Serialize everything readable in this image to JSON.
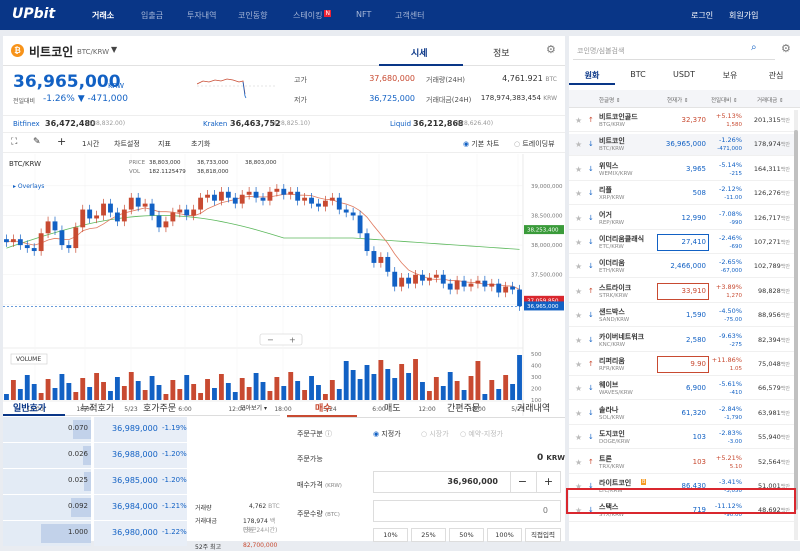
{
  "header": {
    "logo": "UPbit",
    "nav": [
      "거래소",
      "입출금",
      "투자내역",
      "코인동향",
      "스테이킹",
      "NFT",
      "고객센터"
    ],
    "staking_badge": "N",
    "login": "로그인",
    "signup": "회원가입"
  },
  "coin": {
    "icon": "₿",
    "name": "비트코인",
    "pair": "BTC/KRW",
    "tab_price": "시세",
    "tab_info": "정보",
    "price": "36,965,000",
    "unit": "KRW",
    "change_label": "전일대비",
    "change": "-1.26%",
    "change_amt": "▼ -471,000"
  },
  "stats": {
    "high_label": "고가",
    "high": "37,680,000",
    "low_label": "저가",
    "low": "36,725,000",
    "vol_label": "거래량(24H)",
    "vol": "4,761.921",
    "vol_unit": "BTC",
    "amt_label": "거래대금(24H)",
    "amt": "178,974,383,454",
    "amt_unit": "KRW"
  },
  "exchanges": [
    {
      "name": "Bitfinex",
      "value": "36,472,480",
      "usd": "($28,832.00)"
    },
    {
      "name": "Kraken",
      "value": "36,463,752",
      "usd": "($28,825.10)"
    },
    {
      "name": "Liquid",
      "value": "36,212,868",
      "usd": "($28,626.40)"
    }
  ],
  "toolbar": {
    "interval": "1시간",
    "settings": "차트설정",
    "indicator": "지표",
    "reset": "초기화",
    "basic": "기본 차트",
    "tradingview": "트레이딩뷰"
  },
  "chart_data": {
    "type": "candlestick",
    "title": "",
    "symbol": "BTC/KRW",
    "overlays": "Overlays",
    "volume_label": "VOLUME",
    "legend": {
      "price": "PRICE",
      "vol": "VOL",
      "p1": "38,803,000",
      "v1": "182.1125479",
      "p2": "38,733,000",
      "v2": "38,818,000",
      "p3": "38,803,000"
    },
    "y_ticks": [
      "39,000,000",
      "38,500,000",
      "38,000,000",
      "37,500,000",
      "37,000,000"
    ],
    "y_tags": [
      "38,253,400",
      "37,059,850",
      "36,965,000"
    ],
    "vol_ticks": [
      "500",
      "400",
      "300",
      "200",
      "100"
    ],
    "x_labels": [
      "12:00",
      "18:00",
      "5/23",
      "6:00",
      "12:00",
      "18:00",
      "5/24",
      "6:00",
      "12:00",
      "18:00",
      "5/25"
    ],
    "ylim": [
      36500000,
      39200000
    ]
  },
  "orderbook": {
    "tabs": [
      "일반호가",
      "누적호가",
      "호가주문"
    ],
    "view": "모아보기 ▾",
    "rows": [
      {
        "qty": "0.070",
        "price": "36,989,000",
        "pct": "-1.19%"
      },
      {
        "qty": "0.026",
        "price": "36,988,000",
        "pct": "-1.20%"
      },
      {
        "qty": "0.025",
        "price": "36,985,000",
        "pct": "-1.20%"
      },
      {
        "qty": "0.092",
        "price": "36,984,000",
        "pct": "-1.21%"
      },
      {
        "qty": "1.000",
        "price": "36,980,000",
        "pct": "-1.22%"
      }
    ],
    "info": {
      "vol_l": "거래량",
      "vol_v": "4,762",
      "vol_u": "BTC",
      "amt_l": "거래대금",
      "amt_v": "178,974",
      "amt_u": "백만원",
      "amt_n": "(최근24시간)",
      "hi52_l": "52주 최고",
      "hi52_v": "82,700,000",
      "hi52_d": "(2021.11.09)",
      "lo52_l": "52주 최저",
      "lo52_v": "33,900,000"
    }
  },
  "order": {
    "tabs": [
      "매수",
      "매도",
      "간편주문",
      "거래내역"
    ],
    "type_label": "주문구분",
    "opt_limit": "지정가",
    "opt_market": "시장가",
    "opt_reserve": "예약-지정가",
    "avail_label": "주문가능",
    "avail_value": "0",
    "avail_unit": "KRW",
    "price_label": "매수가격",
    "price_unit": "(KRW)",
    "price_value": "36,960,000",
    "qty_label": "주문수량",
    "qty_unit": "(BTC)",
    "qty_value": "0",
    "pcts": [
      "10%",
      "25%",
      "50%",
      "100%",
      "직접입력"
    ]
  },
  "right": {
    "search_placeholder": "코인명/심볼검색",
    "tabs": [
      "원화",
      "BTC",
      "USDT",
      "보유",
      "관심"
    ],
    "cols": [
      "한글명 ⇕",
      "현재가 ⇕",
      "전일대비 ⇕",
      "거래대금 ⇕"
    ],
    "coins": [
      {
        "name": "비트코인골드",
        "pair": "BTG/KRW",
        "price": "32,370",
        "pct": "+5.13%",
        "chg": "1,580",
        "vol": "201,315",
        "dir": "up"
      },
      {
        "name": "비트코인",
        "pair": "BTC/KRW",
        "price": "36,965,000",
        "pct": "-1.26%",
        "chg": "-471,000",
        "vol": "178,974",
        "dir": "dn"
      },
      {
        "name": "위믹스",
        "pair": "WEMIX/KRW",
        "price": "3,965",
        "pct": "-5.14%",
        "chg": "-215",
        "vol": "164,311",
        "dir": "dn"
      },
      {
        "name": "리플",
        "pair": "XRP/KRW",
        "price": "508",
        "pct": "-2.12%",
        "chg": "-11.00",
        "vol": "126,276",
        "dir": "dn"
      },
      {
        "name": "어거",
        "pair": "REP/KRW",
        "price": "12,990",
        "pct": "-7.08%",
        "chg": "-990",
        "vol": "126,717",
        "dir": "dn"
      },
      {
        "name": "이더리움클래식",
        "pair": "ETC/KRW",
        "price": "27,410",
        "pct": "-2.46%",
        "chg": "-690",
        "vol": "107,271",
        "dir": "dn"
      },
      {
        "name": "이더리움",
        "pair": "ETH/KRW",
        "price": "2,466,000",
        "pct": "-2.65%",
        "chg": "-67,000",
        "vol": "102,789",
        "dir": "dn"
      },
      {
        "name": "스트라이크",
        "pair": "STRK/KRW",
        "price": "33,910",
        "pct": "+3.89%",
        "chg": "1,270",
        "vol": "98,828",
        "dir": "up"
      },
      {
        "name": "샌드박스",
        "pair": "SAND/KRW",
        "price": "1,590",
        "pct": "-4.50%",
        "chg": "-75.00",
        "vol": "88,956",
        "dir": "dn"
      },
      {
        "name": "카이버네트워크",
        "pair": "KNC/KRW",
        "price": "2,580",
        "pct": "-9.63%",
        "chg": "-275",
        "vol": "82,394",
        "dir": "dn"
      },
      {
        "name": "리퍼리움",
        "pair": "RFR/KRW",
        "price": "9.90",
        "pct": "+11.86%",
        "chg": "1.05",
        "vol": "75,048",
        "dir": "up"
      },
      {
        "name": "웨이브",
        "pair": "WAVES/KRW",
        "price": "6,900",
        "pct": "-5.61%",
        "chg": "-410",
        "vol": "66,579",
        "dir": "dn"
      },
      {
        "name": "솔라나",
        "pair": "SOL/KRW",
        "price": "61,320",
        "pct": "-2.84%",
        "chg": "-1,790",
        "vol": "63,981",
        "dir": "dn"
      },
      {
        "name": "도지코인",
        "pair": "DOGE/KRW",
        "price": "103",
        "pct": "-2.83%",
        "chg": "-3.00",
        "vol": "55,940",
        "dir": "dn"
      },
      {
        "name": "트론",
        "pair": "TRX/KRW",
        "price": "103",
        "pct": "+5.21%",
        "chg": "5.10",
        "vol": "52,564",
        "dir": "up"
      },
      {
        "name": "라이트코인",
        "pair": "LTC/KRW",
        "price": "86,430",
        "pct": "-3.41%",
        "chg": "-3,050",
        "vol": "51,001",
        "dir": "dn"
      },
      {
        "name": "스택스",
        "pair": "STX/KRW",
        "price": "719",
        "pct": "-11.12%",
        "chg": "-90.00",
        "vol": "48,692",
        "dir": "dn"
      }
    ],
    "vol_unit": "백만",
    "highlight_badge": "B"
  }
}
